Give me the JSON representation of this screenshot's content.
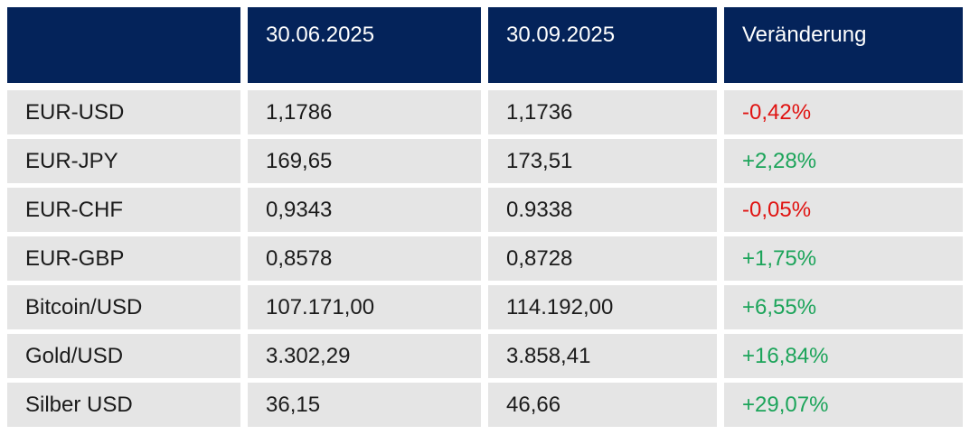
{
  "chart_data": {
    "type": "table",
    "title": "",
    "columns": [
      "",
      "30.06.2025",
      "30.09.2025",
      "Veränderung"
    ],
    "rows": [
      {
        "label": "EUR-USD",
        "value_start": "1,1786",
        "value_end": "1,1736",
        "change": "-0,42%",
        "trend": "negative"
      },
      {
        "label": "EUR-JPY",
        "value_start": "169,65",
        "value_end": "173,51",
        "change": "+2,28%",
        "trend": "positive"
      },
      {
        "label": "EUR-CHF",
        "value_start": "0,9343",
        "value_end": "0.9338",
        "change": "-0,05%",
        "trend": "negative"
      },
      {
        "label": "EUR-GBP",
        "value_start": "0,8578",
        "value_end": "0,8728",
        "change": "+1,75%",
        "trend": "positive"
      },
      {
        "label": "Bitcoin/USD",
        "value_start": "107.171,00",
        "value_end": "114.192,00",
        "change": "+6,55%",
        "trend": "positive"
      },
      {
        "label": "Gold/USD",
        "value_start": "3.302,29",
        "value_end": "3.858,41",
        "change": "+16,84%",
        "trend": "positive"
      },
      {
        "label": "Silber USD",
        "value_start": "36,15",
        "value_end": "46,66",
        "change": "+29,07%",
        "trend": "positive"
      }
    ]
  },
  "colors": {
    "header_bg": "#04235a",
    "row_bg": "#e5e5e5",
    "positive": "#1ca45a",
    "negative": "#e01311"
  }
}
